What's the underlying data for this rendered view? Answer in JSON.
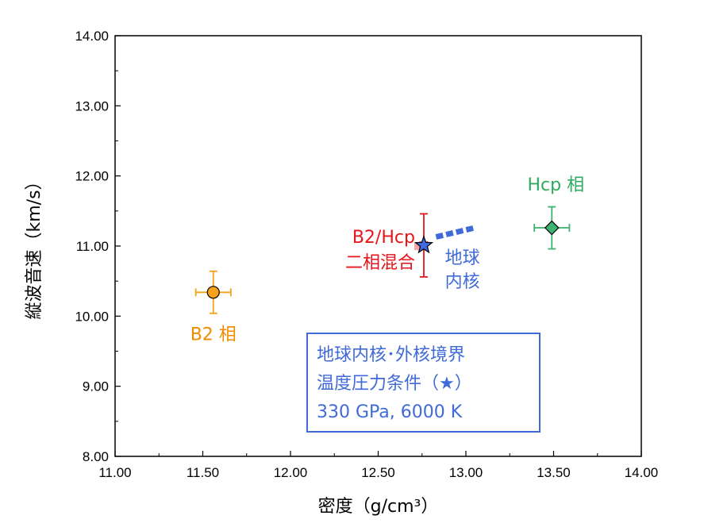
{
  "chart_data": {
    "type": "scatter",
    "xlabel": "密度（g/cm³）",
    "ylabel": "縦波音速（km/s）",
    "xlim": [
      11.0,
      14.0
    ],
    "ylim": [
      8.0,
      14.0
    ],
    "x_ticks": [
      "11.00",
      "11.50",
      "12.00",
      "12.50",
      "13.00",
      "13.50",
      "14.00"
    ],
    "y_ticks": [
      "8.00",
      "9.00",
      "10.00",
      "11.00",
      "12.00",
      "13.00",
      "14.00"
    ],
    "grid": false,
    "points": [
      {
        "label": "B2 相",
        "x": 11.56,
        "y": 10.34,
        "xerr": 0.1,
        "yerr": 0.3,
        "marker": "circle",
        "color": "#f7a11a",
        "text_color": "#f08a00"
      },
      {
        "label": "Hcp 相",
        "x": 13.49,
        "y": 11.26,
        "xerr": 0.1,
        "yerr": 0.3,
        "marker": "diamond",
        "color": "#3cb371",
        "text_color": "#2eaa5f"
      },
      {
        "label": "B2/Hcp\n二相混合",
        "x": 12.76,
        "y": 11.01,
        "xerr": 0.02,
        "yerr": 0.45,
        "marker": "star",
        "color": "#4169e1",
        "text_color": "#e8141b",
        "errbar_color": "#e8141b"
      }
    ],
    "segments": [
      {
        "label": "地球\n内核",
        "x": [
          12.83,
          13.05
        ],
        "y": [
          11.13,
          11.26
        ],
        "color": "#3f6ad8",
        "style": "dashed"
      }
    ],
    "annotation_box": {
      "lines": [
        "地球内核･外核境界",
        "温度圧力条件（★）",
        "330 GPa, 6000 K"
      ],
      "color": "#3f6ad8"
    }
  }
}
